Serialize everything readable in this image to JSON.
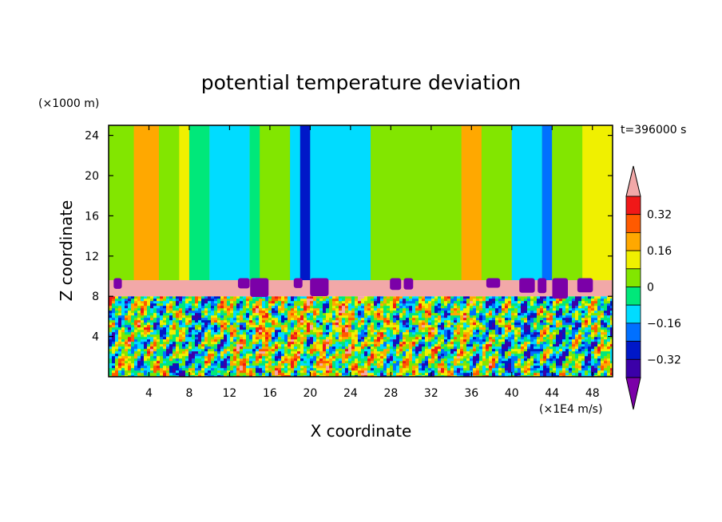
{
  "chart_data": {
    "type": "heatmap",
    "title": "potential temperature deviation",
    "xlabel": "X coordinate",
    "ylabel": "Z coordinate",
    "x_unit": "(×1E4 m/s)",
    "y_unit": "(×1000 m)",
    "time_label": "t=396000 s",
    "xlim": [
      0,
      50
    ],
    "ylim": [
      0,
      25
    ],
    "x_ticks": [
      "4",
      "8",
      "12",
      "16",
      "20",
      "24",
      "28",
      "32",
      "36",
      "40",
      "44",
      "48"
    ],
    "y_ticks": [
      "4",
      "8",
      "12",
      "16",
      "20",
      "24"
    ],
    "colorbar": {
      "ticks": [
        "0.32",
        "0.16",
        "0",
        "−0.16",
        "−0.32"
      ],
      "levels": [
        -0.4,
        -0.32,
        -0.24,
        -0.16,
        -0.08,
        0,
        0.08,
        0.16,
        0.24,
        0.32,
        0.4
      ],
      "colors": [
        "#7b00a8",
        "#3b00a8",
        "#0018c8",
        "#0070ff",
        "#00dcff",
        "#00e87a",
        "#82e600",
        "#f0f000",
        "#ffa800",
        "#ff5a00",
        "#f01818",
        "#f2a8a8"
      ]
    },
    "upper_layer_columns": [
      {
        "x": [
          0,
          2.5
        ],
        "value": 0.06
      },
      {
        "x": [
          2.5,
          5
        ],
        "value": 0.18
      },
      {
        "x": [
          5,
          7
        ],
        "value": 0.04
      },
      {
        "x": [
          7,
          8
        ],
        "value": 0.1
      },
      {
        "x": [
          8,
          10
        ],
        "value": -0.06
      },
      {
        "x": [
          10,
          14
        ],
        "value": -0.1
      },
      {
        "x": [
          14,
          15
        ],
        "value": -0.05
      },
      {
        "x": [
          15,
          18
        ],
        "value": 0.03
      },
      {
        "x": [
          18,
          20
        ],
        "value": -0.12
      },
      {
        "x": [
          19,
          20
        ],
        "value": -0.28
      },
      {
        "x": [
          20,
          26
        ],
        "value": -0.1
      },
      {
        "x": [
          26,
          28
        ],
        "value": 0.04
      },
      {
        "x": [
          28,
          31
        ],
        "value": 0.06
      },
      {
        "x": [
          31,
          34
        ],
        "value": 0.0
      },
      {
        "x": [
          34,
          35
        ],
        "value": 0.07
      },
      {
        "x": [
          35,
          37
        ],
        "value": 0.22
      },
      {
        "x": [
          37,
          40
        ],
        "value": 0.05
      },
      {
        "x": [
          40,
          43
        ],
        "value": -0.1
      },
      {
        "x": [
          43,
          44
        ],
        "value": -0.22
      },
      {
        "x": [
          44,
          47
        ],
        "value": 0.04
      },
      {
        "x": [
          47,
          50
        ],
        "value": 0.15
      }
    ],
    "inversion_layer": {
      "z": [
        8,
        9.6
      ],
      "value": 0.42
    },
    "lower_layer": {
      "z": [
        0,
        8
      ],
      "range": [
        -0.4,
        0.42
      ]
    }
  }
}
